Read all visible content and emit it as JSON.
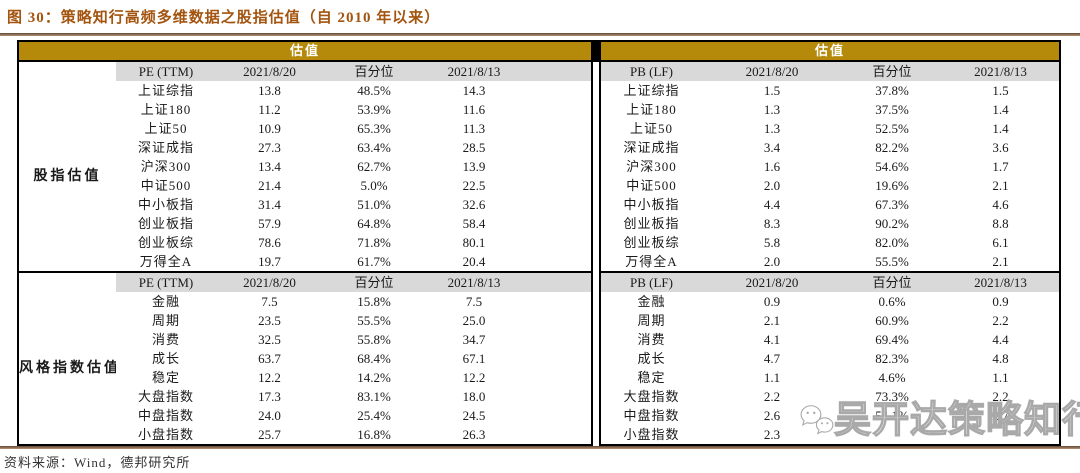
{
  "figure": {
    "title": "图 30：策略知行高频多维数据之股指估值（自 2010 年以来）",
    "source_note": "资料来源：Wind，德邦研究所",
    "watermark_text": "吴开达策略知行"
  },
  "colors": {
    "title_orange": "#A3540F",
    "band_gold": "#B58A0B",
    "header_gray": "#D9D9D9",
    "rule_brown": "#8C6A50"
  },
  "left_table": {
    "band_label": "估值",
    "group_col": true,
    "sections": [
      {
        "group": "股指估值",
        "header": [
          "PE (TTM)",
          "2021/8/20",
          "百分位",
          "2021/8/13"
        ],
        "rows": [
          [
            "上证综指",
            "13.8",
            "48.5%",
            "14.3"
          ],
          [
            "上证180",
            "11.2",
            "53.9%",
            "11.6"
          ],
          [
            "上证50",
            "10.9",
            "65.3%",
            "11.3"
          ],
          [
            "深证成指",
            "27.3",
            "63.4%",
            "28.5"
          ],
          [
            "沪深300",
            "13.4",
            "62.7%",
            "13.9"
          ],
          [
            "中证500",
            "21.4",
            "5.0%",
            "22.5"
          ],
          [
            "中小板指",
            "31.4",
            "51.0%",
            "32.6"
          ],
          [
            "创业板指",
            "57.9",
            "64.8%",
            "58.4"
          ],
          [
            "创业板综",
            "78.6",
            "71.8%",
            "80.1"
          ],
          [
            "万得全A",
            "19.7",
            "61.7%",
            "20.4"
          ]
        ]
      },
      {
        "group": "风格指数估值",
        "header": [
          "PE (TTM)",
          "2021/8/20",
          "百分位",
          "2021/8/13"
        ],
        "rows": [
          [
            "金融",
            "7.5",
            "15.8%",
            "7.5"
          ],
          [
            "周期",
            "23.5",
            "55.5%",
            "25.0"
          ],
          [
            "消费",
            "32.5",
            "55.8%",
            "34.7"
          ],
          [
            "成长",
            "63.7",
            "68.4%",
            "67.1"
          ],
          [
            "稳定",
            "12.2",
            "14.2%",
            "12.2"
          ],
          [
            "大盘指数",
            "17.3",
            "83.1%",
            "18.0"
          ],
          [
            "中盘指数",
            "24.0",
            "25.4%",
            "24.5"
          ],
          [
            "小盘指数",
            "25.7",
            "16.8%",
            "26.3"
          ]
        ]
      }
    ]
  },
  "right_table": {
    "band_label": "估值",
    "group_col": false,
    "sections": [
      {
        "header": [
          "PB (LF)",
          "2021/8/20",
          "百分位",
          "2021/8/13"
        ],
        "rows": [
          [
            "上证综指",
            "1.5",
            "37.8%",
            "1.5"
          ],
          [
            "上证180",
            "1.3",
            "37.5%",
            "1.4"
          ],
          [
            "上证50",
            "1.3",
            "52.5%",
            "1.4"
          ],
          [
            "深证成指",
            "3.4",
            "82.2%",
            "3.6"
          ],
          [
            "沪深300",
            "1.6",
            "54.6%",
            "1.7"
          ],
          [
            "中证500",
            "2.0",
            "19.6%",
            "2.1"
          ],
          [
            "中小板指",
            "4.4",
            "67.3%",
            "4.6"
          ],
          [
            "创业板指",
            "8.3",
            "90.2%",
            "8.8"
          ],
          [
            "创业板综",
            "5.8",
            "82.0%",
            "6.1"
          ],
          [
            "万得全A",
            "2.0",
            "55.5%",
            "2.1"
          ]
        ]
      },
      {
        "header": [
          "PB (LF)",
          "2021/8/20",
          "百分位",
          "2021/8/13"
        ],
        "rows": [
          [
            "金融",
            "0.9",
            "0.6%",
            "0.9"
          ],
          [
            "周期",
            "2.1",
            "60.9%",
            "2.2"
          ],
          [
            "消费",
            "4.1",
            "69.4%",
            "4.4"
          ],
          [
            "成长",
            "4.7",
            "82.3%",
            "4.8"
          ],
          [
            "稳定",
            "1.1",
            "4.6%",
            "1.1"
          ],
          [
            "大盘指数",
            "2.2",
            "73.3%",
            "2.2"
          ],
          [
            "中盘指数",
            "2.6",
            "54.1%",
            "2.7"
          ],
          [
            "小盘指数",
            "2.3",
            "",
            ""
          ]
        ]
      }
    ]
  }
}
